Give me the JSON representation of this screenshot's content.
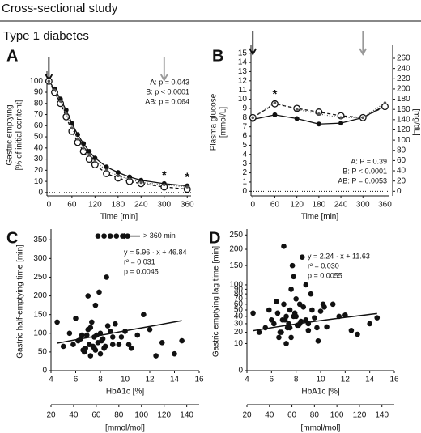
{
  "header": {
    "title": "Cross-sectional study",
    "subtitle": "Type 1 diabetes"
  },
  "chart_data": [
    {
      "type": "line",
      "panel": "A",
      "xlabel": "Time [min]",
      "ylabel": [
        "Gastric emptying",
        "[% of initial content]"
      ],
      "x": [
        0,
        15,
        30,
        45,
        60,
        75,
        90,
        105,
        120,
        150,
        180,
        210,
        240,
        300,
        360
      ],
      "series": [
        {
          "color": "#111111",
          "marker": "filled",
          "dash": "",
          "values": [
            100,
            93,
            84,
            74,
            62,
            52,
            44,
            37,
            31,
            23,
            18,
            14,
            11,
            8,
            6
          ]
        },
        {
          "color": "#111111",
          "marker": "open",
          "dash": "4 3",
          "values": [
            100,
            90,
            80,
            68,
            55,
            45,
            37,
            30,
            25,
            17,
            13,
            10,
            8,
            5,
            3
          ]
        },
        {
          "color": "#555555",
          "marker": "small",
          "dash": "1 2",
          "values": [
            100,
            92,
            82,
            71,
            58,
            48,
            40,
            34,
            28,
            20,
            15,
            12,
            9,
            7,
            5
          ]
        }
      ],
      "xlim": [
        -5,
        370
      ],
      "xticks": [
        0,
        60,
        120,
        180,
        240,
        300,
        360
      ],
      "ylim": [
        -3,
        106
      ],
      "yticks": [
        0,
        10,
        20,
        30,
        40,
        50,
        60,
        70,
        80,
        90,
        100
      ],
      "zero_line": true,
      "annotations": [
        "A: p = 0.043",
        "B: p < 0.0001",
        "AB: p = 0.064"
      ],
      "stars": [
        {
          "x": 300,
          "text": "*"
        },
        {
          "x": 360,
          "text": "*"
        }
      ],
      "arrows": [
        {
          "x": 0,
          "color": "#111111"
        },
        {
          "x": 300,
          "color": "#999999"
        }
      ]
    },
    {
      "type": "line",
      "panel": "B",
      "xlabel": "Time [min]",
      "ylabel": [
        "Plasma glucose",
        "[mmol/L]"
      ],
      "y2label": "[mg/dL]",
      "x": [
        0,
        60,
        120,
        180,
        240,
        300,
        360
      ],
      "series": [
        {
          "color": "#111111",
          "marker": "filled",
          "dash": "",
          "values": [
            7.8,
            8.3,
            7.9,
            7.3,
            7.4,
            8.0,
            9.3
          ]
        },
        {
          "color": "#111111",
          "marker": "open",
          "dash": "4 3",
          "values": [
            8.0,
            9.5,
            9.0,
            8.6,
            8.2,
            8.0,
            9.2
          ]
        },
        {
          "color": "#555555",
          "marker": "small",
          "dash": "1 2",
          "values": [
            8.0,
            9.6,
            8.9,
            8.4,
            8.0,
            8.0,
            9.6
          ]
        }
      ],
      "xlim": [
        -5,
        370
      ],
      "xticks": [
        0,
        60,
        120,
        180,
        240,
        300,
        360
      ],
      "ylim": [
        -0.5,
        15.5
      ],
      "yticks": [
        0,
        1,
        2,
        3,
        4,
        5,
        6,
        7,
        8,
        9,
        10,
        11,
        12,
        13,
        14,
        15
      ],
      "y2lim": [
        -9,
        279
      ],
      "y2ticks": [
        0,
        20,
        40,
        60,
        80,
        100,
        120,
        140,
        160,
        180,
        200,
        220,
        240,
        260
      ],
      "zero_line": true,
      "annotations": [
        "A: P = 0.39",
        "B: P < 0.0001",
        "AB: P = 0.0053"
      ],
      "stars": [
        {
          "x": 60,
          "text": "*"
        }
      ],
      "arrows": [
        {
          "x": 0,
          "color": "#111111"
        },
        {
          "x": 300,
          "color": "#999999"
        }
      ]
    },
    {
      "type": "scatter",
      "panel": "C",
      "xlabel": "HbA1c [%]",
      "x2label": "[mmol/mol]",
      "ylabel": "Gastric half-emptying time [min]",
      "x": [
        6.2,
        6.5,
        6.8,
        7.0,
        7.1,
        7.3,
        7.5,
        7.6,
        7.8,
        8.0,
        8.2,
        8.4,
        8.6,
        9.0,
        9.5,
        10.0,
        10.5,
        11.0,
        12.0,
        13.0,
        14.0,
        14.6,
        5.5,
        5.8,
        6.0,
        6.4,
        6.7,
        7.2,
        7.4,
        7.7,
        7.9,
        8.1,
        8.3,
        8.8,
        9.2,
        9.7,
        10.3,
        11.5,
        12.5,
        4.5,
        5.0,
        6.9,
        7.0,
        7.6,
        8.5,
        9.0,
        7.8,
        8.8,
        10.2,
        6.6,
        7.2,
        7.5,
        8.0,
        8.3,
        9.3,
        9.8
      ],
      "values": [
        80,
        95,
        60,
        110,
        70,
        130,
        90,
        55,
        75,
        100,
        85,
        65,
        120,
        90,
        70,
        105,
        60,
        95,
        110,
        75,
        45,
        80,
        100,
        70,
        140,
        85,
        50,
        115,
        65,
        95,
        210,
        80,
        60,
        105,
        125,
        90,
        70,
        150,
        40,
        130,
        65,
        95,
        200,
        175,
        250,
        70,
        360,
        360,
        360,
        55,
        40,
        60,
        45,
        360,
        360,
        360
      ],
      "color": "#111111",
      "xlim": [
        4,
        16
      ],
      "xticks": [
        4,
        6,
        8,
        10,
        12,
        14,
        16
      ],
      "x2lim": [
        20,
        151
      ],
      "x2ticks": [
        20,
        40,
        60,
        80,
        100,
        120,
        140
      ],
      "ylim": [
        0,
        370
      ],
      "yticks": [
        0,
        50,
        100,
        150,
        200,
        250,
        300,
        350
      ],
      "fit": {
        "slope": 5.96,
        "intercept": 46.84
      },
      "annotations": [
        "y = 5.96 · x + 46.84",
        "r² = 0.031",
        "p = 0.0045"
      ],
      "cap_label": "> 360 min"
    },
    {
      "type": "scatter",
      "panel": "D",
      "xlabel": "HbA1c [%]",
      "x2label": "[mmol/mol]",
      "ylabel": "Gastric emptying lag time [min]",
      "x": [
        6.2,
        6.5,
        6.8,
        7.0,
        7.1,
        7.3,
        7.5,
        7.6,
        7.8,
        8.0,
        8.2,
        8.4,
        8.6,
        9.0,
        9.5,
        10.0,
        10.5,
        11.0,
        12.0,
        13.0,
        14.0,
        14.6,
        5.5,
        5.8,
        6.0,
        6.4,
        6.7,
        7.2,
        7.4,
        7.7,
        7.9,
        8.1,
        8.3,
        8.8,
        9.2,
        9.7,
        10.3,
        11.5,
        12.5,
        4.5,
        5.0,
        6.9,
        7.0,
        7.6,
        8.5,
        9.0,
        7.8,
        8.8,
        10.2,
        6.6,
        7.2,
        7.5,
        8.0,
        8.3,
        9.3,
        9.8
      ],
      "values": [
        30,
        45,
        20,
        60,
        35,
        25,
        50,
        15,
        40,
        70,
        28,
        33,
        55,
        22,
        38,
        48,
        26,
        60,
        42,
        18,
        30,
        38,
        25,
        50,
        35,
        65,
        20,
        40,
        30,
        150,
        45,
        28,
        60,
        35,
        80,
        25,
        55,
        40,
        22,
        45,
        20,
        35,
        210,
        90,
        175,
        30,
        120,
        100,
        60,
        15,
        10,
        25,
        40,
        30,
        50,
        12
      ],
      "color": "#111111",
      "xlim": [
        4,
        16
      ],
      "xticks": [
        4,
        6,
        8,
        10,
        12,
        14,
        16
      ],
      "x2lim": [
        20,
        151
      ],
      "x2ticks": [
        20,
        40,
        60,
        80,
        100,
        120,
        140
      ],
      "ylim": [
        0,
        260
      ],
      "yscale": "sqrt",
      "yticks": [
        0,
        10,
        20,
        30,
        40,
        50,
        60,
        70,
        80,
        90,
        100,
        150,
        200,
        250
      ],
      "fit": {
        "slope": 2.24,
        "intercept": 11.63
      },
      "annotations": [
        "y = 2.24 · x + 11.63",
        "r² = 0.030",
        "p = 0.0055"
      ]
    }
  ]
}
